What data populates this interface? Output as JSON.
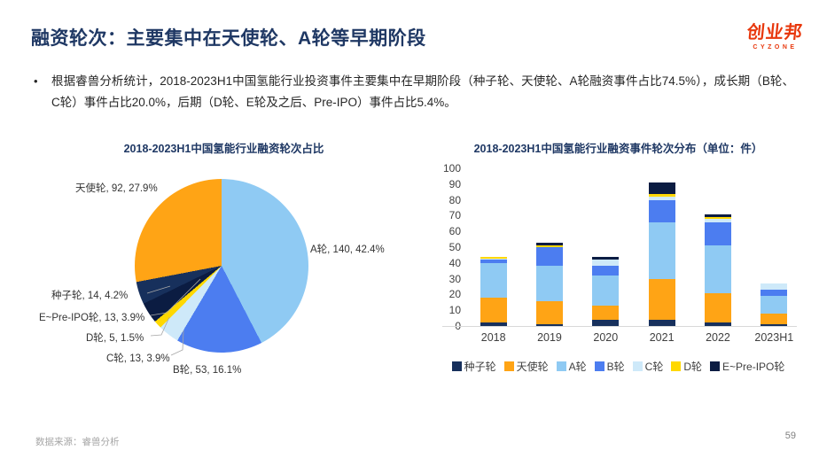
{
  "header": {
    "title": "融资轮次：主要集中在天使轮、A轮等早期阶段",
    "logo_text": "创业邦",
    "logo_sub": "CYZONE"
  },
  "bullet": {
    "marker": "•",
    "text": "根据睿兽分析统计，2018-2023H1中国氢能行业投资事件主要集中在早期阶段（种子轮、天使轮、A轮融资事件占比74.5%），成长期（B轮、C轮）事件占比20.0%，后期（D轮、E轮及之后、Pre-IPO）事件占比5.4%。"
  },
  "footer": {
    "source": "数据来源：睿兽分析",
    "page": "59"
  },
  "colors": {
    "title_navy": "#1F3864",
    "logo_red": "#E8380D",
    "seed": "#17305C",
    "angel": "#FFA415",
    "round_a": "#8FCAF3",
    "round_b": "#4C7DF0",
    "round_c": "#CEE9F9",
    "round_d": "#FFD800",
    "e_pre_ipo": "#0B1C42"
  },
  "chart_data": [
    {
      "type": "pie",
      "title": "2018-2023H1中国氢能行业融资轮次占比",
      "direction": "clockwise",
      "start_angle_deg": 0,
      "slices": [
        {
          "label": "A轮",
          "value": 140,
          "percent": 42.4,
          "color": "#8FCAF3"
        },
        {
          "label": "B轮",
          "value": 53,
          "percent": 16.1,
          "color": "#4C7DF0"
        },
        {
          "label": "C轮",
          "value": 13,
          "percent": 3.9,
          "color": "#CEE9F9"
        },
        {
          "label": "D轮",
          "value": 5,
          "percent": 1.5,
          "color": "#FFD800"
        },
        {
          "label": "E~Pre-IPO轮",
          "value": 13,
          "percent": 3.9,
          "color": "#0B1C42"
        },
        {
          "label": "种子轮",
          "value": 14,
          "percent": 4.2,
          "color": "#17305C"
        },
        {
          "label": "天使轮",
          "value": 92,
          "percent": 27.9,
          "color": "#FFA415"
        }
      ],
      "labels": [
        "天使轮, 92, 27.9%",
        "A轮, 140, 42.4%",
        "种子轮, 14, 4.2%",
        "E~Pre-IPO轮, 13, 3.9%",
        "D轮, 5, 1.5%",
        "C轮, 13, 3.9%",
        "B轮, 53, 16.1%"
      ]
    },
    {
      "type": "bar",
      "stacked": true,
      "title": "2018-2023H1中国氢能行业融资事件轮次分布（单位：件）",
      "categories": [
        "2018",
        "2019",
        "2020",
        "2021",
        "2022",
        "2023H1"
      ],
      "series": [
        {
          "name": "种子轮",
          "color": "#17305C",
          "values": [
            2,
            1,
            4,
            4,
            2,
            1
          ]
        },
        {
          "name": "天使轮",
          "color": "#FFA415",
          "values": [
            16,
            15,
            9,
            26,
            19,
            7
          ]
        },
        {
          "name": "A轮",
          "color": "#8FCAF3",
          "values": [
            22,
            22,
            19,
            36,
            30,
            11
          ]
        },
        {
          "name": "B轮",
          "color": "#4C7DF0",
          "values": [
            2,
            12,
            6,
            14,
            15,
            4
          ]
        },
        {
          "name": "C轮",
          "color": "#CEE9F9",
          "values": [
            1,
            0,
            4,
            2,
            2,
            4
          ]
        },
        {
          "name": "D轮",
          "color": "#FFD800",
          "values": [
            1,
            1,
            0,
            2,
            1,
            0
          ]
        },
        {
          "name": "E~Pre-IPO轮",
          "color": "#0B1C42",
          "values": [
            0,
            2,
            2,
            7,
            2,
            0
          ]
        }
      ],
      "totals": [
        44,
        53,
        44,
        91,
        71,
        27
      ],
      "ylim": [
        0,
        100
      ],
      "yticks": [
        0,
        10,
        20,
        30,
        40,
        50,
        60,
        70,
        80,
        90,
        100
      ],
      "grid": false,
      "legend_position": "bottom"
    }
  ]
}
